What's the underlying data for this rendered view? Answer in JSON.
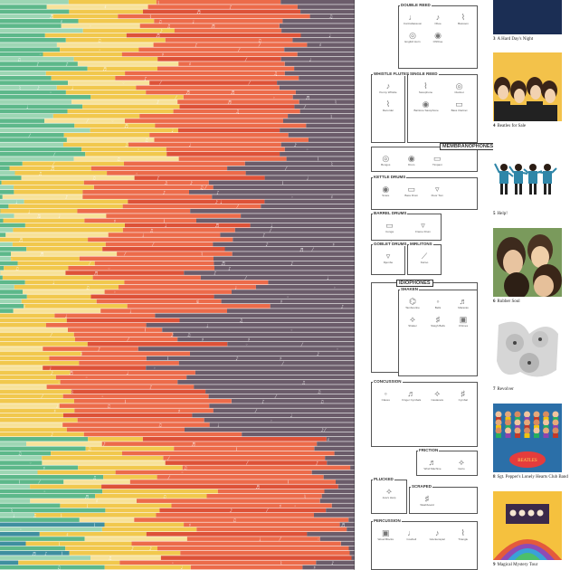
{
  "colors": {
    "green": "#5db88a",
    "mint": "#9dd6b4",
    "yellow": "#f1c84d",
    "pale_yellow": "#f7e29a",
    "orange": "#ec6b4a",
    "red": "#dd5238",
    "purple": "#6b5c6a",
    "teal": "#3f8fa0"
  },
  "legend": {
    "sections": [
      {
        "label": "Double Reed",
        "instruments": [
          "Contrabassoon",
          "Oboe",
          "Bassoon",
          "English Horn",
          "Ohhhoe"
        ]
      },
      {
        "label": "Whistle Flutes",
        "instruments": [
          "Penny Whistle",
          "Recorder"
        ]
      },
      {
        "label": "Single Reed",
        "instruments": [
          "Saxophone",
          "Clarinet",
          "Baritone Saxophone",
          "Bass Clarinet"
        ]
      },
      {
        "label": "Membranophones",
        "instruments": [
          "Bongos",
          "Drum",
          "Timpani"
        ]
      },
      {
        "label": "Kettle Drums",
        "instruments": [
          "Snare",
          "Bass Drum",
          "Floor Tom"
        ]
      },
      {
        "label": "Barrel Drums",
        "instruments": [
          "Conga",
          "Frame Drum",
          "Tabla"
        ]
      },
      {
        "label": "Goblet Drums",
        "instruments": [
          "Djembe"
        ]
      },
      {
        "label": "Mirlitons",
        "instruments": [
          "Kazoo"
        ]
      },
      {
        "label": "Idiophones",
        "instruments": []
      },
      {
        "label": "Shaken",
        "instruments": [
          "Tambourine",
          "Bells",
          "Maracas",
          "Shaker",
          "Sleigh Bells",
          "Chimes"
        ]
      },
      {
        "label": "Concussion",
        "instruments": [
          "Claves",
          "Finger Cymbals",
          "Castanets",
          "Cymbal"
        ]
      },
      {
        "label": "Friction",
        "instruments": [
          "Wind Machine",
          "Guiro"
        ]
      },
      {
        "label": "Plucked",
        "instruments": [
          "Jew's Harp"
        ]
      },
      {
        "label": "Scraped",
        "instruments": [
          "Washboard"
        ]
      },
      {
        "label": "Percussion",
        "instruments": [
          "Wood Blocks",
          "Cowbell",
          "Glockenspiel",
          "Triangle"
        ]
      }
    ]
  },
  "albums": [
    {
      "number": "3",
      "title": "A Hard Day's Night"
    },
    {
      "number": "4",
      "title": "Beatles for Sale"
    },
    {
      "number": "5",
      "title": "Help!"
    },
    {
      "number": "6",
      "title": "Rubber Soul"
    },
    {
      "number": "7",
      "title": "Revolver"
    },
    {
      "number": "8",
      "title": "Sgt. Pepper's Lonely Hearts Club Band"
    },
    {
      "number": "9",
      "title": "Magical Mystery Tour"
    }
  ]
}
